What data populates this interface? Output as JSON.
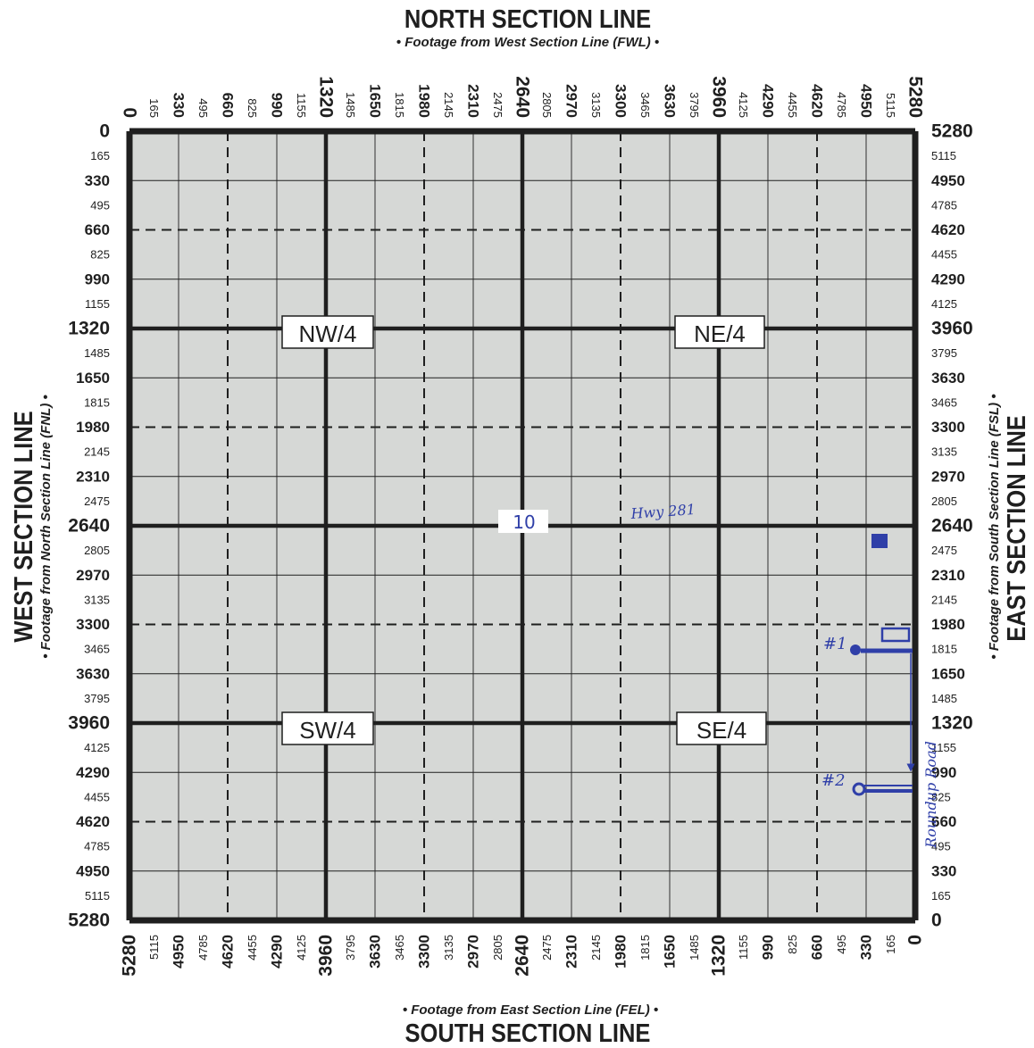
{
  "titles": {
    "north": "NORTH SECTION LINE",
    "north_sub": "• Footage from West Section Line (FWL) •",
    "south": "SOUTH SECTION LINE",
    "south_sub": "• Footage from East Section Line (FEL) •",
    "west": "WEST SECTION LINE",
    "west_sub": "• Footage from North Section Line (FNL) •",
    "east": "EAST SECTION LINE",
    "east_sub": "• Footage from South Section Line (FSL) •"
  },
  "ticks": [
    "0",
    "165",
    "330",
    "495",
    "660",
    "825",
    "990",
    "1155",
    "1320",
    "1485",
    "1650",
    "1815",
    "1980",
    "2145",
    "2310",
    "2475",
    "2640",
    "2805",
    "2970",
    "3135",
    "3300",
    "3465",
    "3630",
    "3795",
    "3960",
    "4125",
    "4290",
    "4455",
    "4620",
    "4785",
    "4950",
    "5115",
    "5280"
  ],
  "ticks_reversed": [
    "5280",
    "5115",
    "4950",
    "4785",
    "4620",
    "4455",
    "4290",
    "4125",
    "3960",
    "3795",
    "3630",
    "3465",
    "3300",
    "3135",
    "2970",
    "2805",
    "2640",
    "2475",
    "2310",
    "2145",
    "1980",
    "1815",
    "1650",
    "1485",
    "1320",
    "1155",
    "990",
    "825",
    "660",
    "495",
    "330",
    "165",
    "0"
  ],
  "quarters": {
    "nw": "NW/4",
    "ne": "NE/4",
    "sw": "SW/4",
    "se": "SE/4"
  },
  "section_number": "10",
  "annotations": {
    "highway": "Hwy 281",
    "well_1": "#1",
    "well_2": "#2",
    "road": "Roundup Road"
  },
  "colors": {
    "grid_fill": "#d6d8d6",
    "line": "#1f1f1f",
    "ink": "#2f3fa8"
  }
}
